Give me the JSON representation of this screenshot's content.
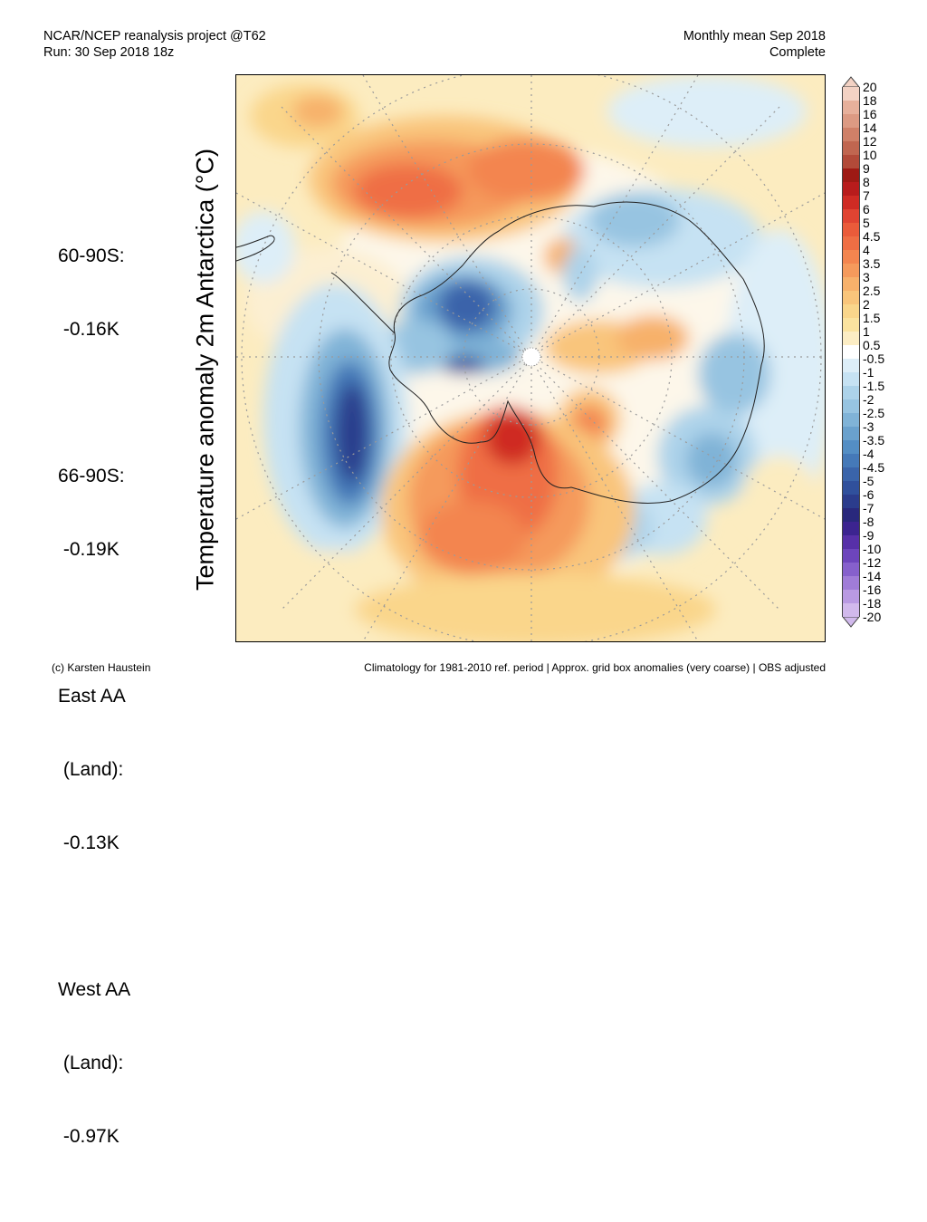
{
  "header": {
    "left_line1": "NCAR/NCEP reanalysis project @T62",
    "left_line2": "Run: 30 Sep 2018 18z",
    "right_line1": "Monthly mean Sep 2018",
    "right_line2": "Complete"
  },
  "y_axis_label": "Temperature anomaly 2m Antarctica (°C)",
  "stats": [
    {
      "line1": "60-90S:",
      "line2": " -0.16K"
    },
    {
      "line1": "66-90S:",
      "line2": " -0.19K"
    },
    {
      "line1": "East AA",
      "line2": " (Land):",
      "line3": " -0.13K"
    },
    {
      "line1": "West AA",
      "line2": " (Land):",
      "line3": " -0.97K"
    }
  ],
  "colorbar": {
    "labels": [
      "20",
      "18",
      "16",
      "14",
      "12",
      "10",
      "9",
      "8",
      "7",
      "6",
      "5",
      "4.5",
      "4",
      "3.5",
      "3",
      "2.5",
      "2",
      "1.5",
      "1",
      "0.5",
      "-0.5",
      "-1",
      "-1.5",
      "-2",
      "-2.5",
      "-3",
      "-3.5",
      "-4",
      "-4.5",
      "-5",
      "-6",
      "-7",
      "-8",
      "-9",
      "-10",
      "-12",
      "-14",
      "-16",
      "-18",
      "-20"
    ],
    "colors": [
      "#f3d2c4",
      "#e7b09b",
      "#dc9a83",
      "#cf8068",
      "#c06650",
      "#b24a39",
      "#9e1a14",
      "#b81c1c",
      "#cf2b24",
      "#e04432",
      "#ea5b3a",
      "#ef6e44",
      "#f3854f",
      "#f59a5c",
      "#f7b16b",
      "#f9c57b",
      "#fad68b",
      "#fbe39f",
      "#fcedc4",
      "#ffffff",
      "#ddeef8",
      "#c6e2f3",
      "#add3ea",
      "#97c4e1",
      "#80b3d7",
      "#6aa1cd",
      "#548ec4",
      "#4579b8",
      "#3a64aa",
      "#30509c",
      "#2b3c8c",
      "#29287c",
      "#3c2490",
      "#5730a8",
      "#6d45bc",
      "#8660cc",
      "#a07cd8",
      "#b99ae2",
      "#d1b9ec"
    ]
  },
  "map": {
    "land_mask_note": ""
  },
  "footer": {
    "left": "(c) Karsten Haustein",
    "right": "Climatology for 1981-2010 ref. period | Approx. grid box anomalies (very coarse) | OBS adjusted"
  }
}
